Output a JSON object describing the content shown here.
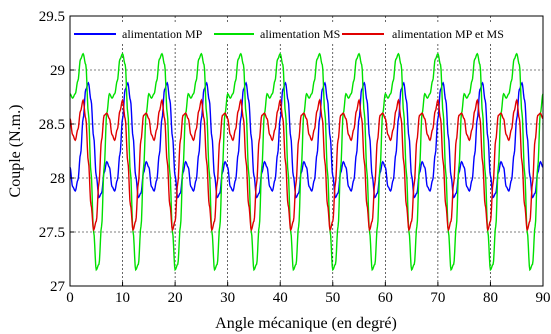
{
  "chart_data": {
    "type": "line",
    "xlabel": "Angle mécanique (en degré)",
    "ylabel": "Couple (N.m.)",
    "xlim": [
      0,
      90
    ],
    "ylim": [
      27,
      29.5
    ],
    "grid": true,
    "legend_position": "top",
    "x_ticks": [
      0,
      10,
      20,
      30,
      40,
      50,
      60,
      70,
      80,
      90
    ],
    "y_ticks": [
      27,
      27.5,
      28,
      28.5,
      29,
      29.5
    ],
    "x_tick_labels": [
      "0",
      "10",
      "20",
      "30",
      "40",
      "50",
      "60",
      "70",
      "80",
      "90"
    ],
    "y_tick_labels": [
      "27",
      "27.5",
      "28",
      "28.5",
      "29",
      "29.5"
    ],
    "period_deg": 7.5,
    "x": [
      0,
      0.5,
      1,
      1.5,
      2,
      2.5,
      3,
      3.5,
      4,
      4.5,
      5,
      5.5,
      6,
      6.5,
      7,
      7.5
    ],
    "series": [
      {
        "name": "alimentation MP",
        "color": "#0000ff",
        "values": [
          28.1,
          27.92,
          27.88,
          27.98,
          28.22,
          28.55,
          28.82,
          28.88,
          28.72,
          28.38,
          28.02,
          27.82,
          27.86,
          28.05,
          28.15,
          28.1
        ]
      },
      {
        "name": "alimentation MS",
        "color": "#00e000",
        "values": [
          28.78,
          28.74,
          28.78,
          28.9,
          29.1,
          29.15,
          29.05,
          28.6,
          28.05,
          27.5,
          27.15,
          27.2,
          27.55,
          28.1,
          28.6,
          28.78
        ]
      },
      {
        "name": "alimentation MP et MS",
        "color": "#e00000",
        "values": [
          28.55,
          28.4,
          28.35,
          28.45,
          28.62,
          28.72,
          28.55,
          28.15,
          27.75,
          27.52,
          27.6,
          27.95,
          28.35,
          28.58,
          28.6,
          28.55
        ]
      }
    ]
  }
}
